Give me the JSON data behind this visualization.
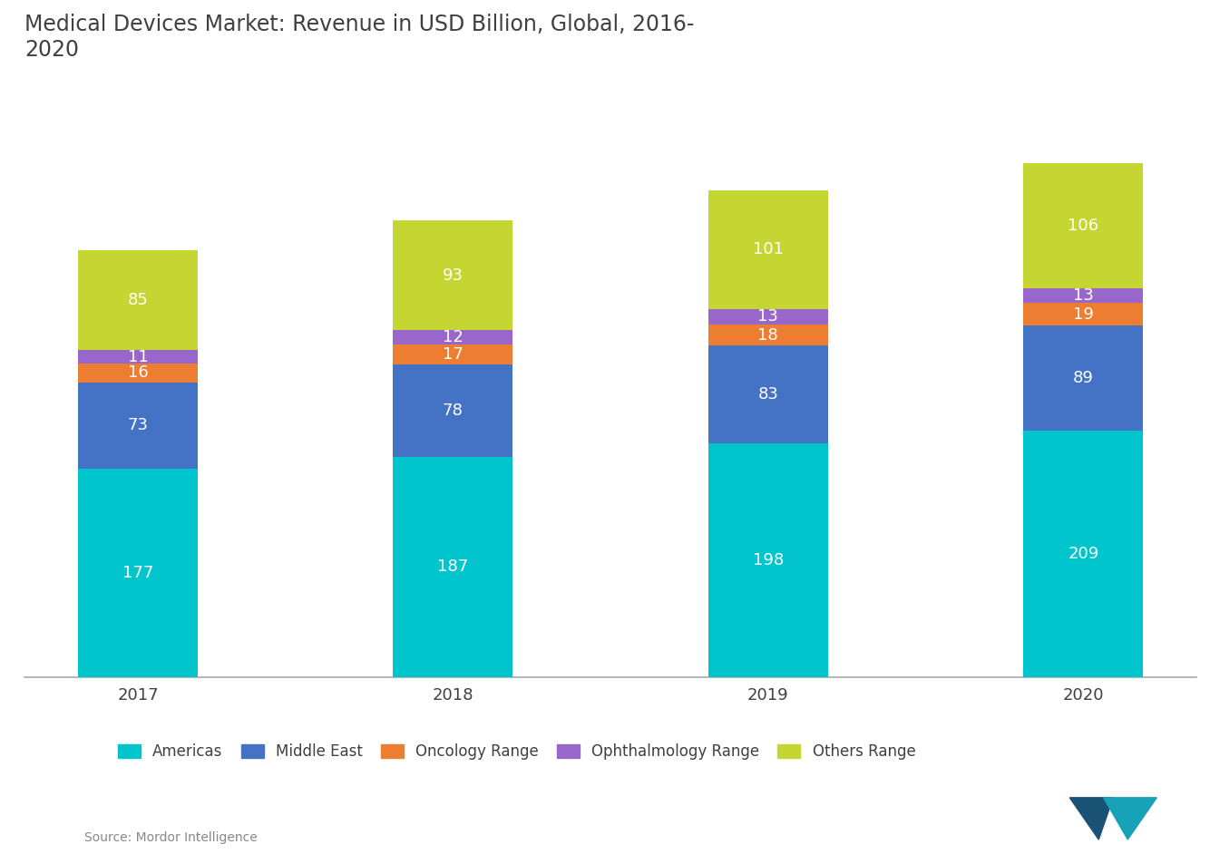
{
  "title": "Medical Devices Market: Revenue in USD Billion, Global, 2016-\n2020",
  "years": [
    "2017",
    "2018",
    "2019",
    "2020"
  ],
  "segments": {
    "Americas": [
      177,
      187,
      198,
      209
    ],
    "Middle East": [
      73,
      78,
      83,
      89
    ],
    "Oncology Range": [
      16,
      17,
      18,
      19
    ],
    "Ophthalmology Range": [
      11,
      12,
      13,
      13
    ],
    "Others Range": [
      85,
      93,
      101,
      106
    ]
  },
  "colors": {
    "Americas": "#00c5cd",
    "Middle East": "#4472c4",
    "Oncology Range": "#ed7d31",
    "Ophthalmology Range": "#9966cc",
    "Others Range": "#c5d633"
  },
  "legend_labels": [
    "Americas",
    "Middle East",
    "Oncology Range",
    "Ophthalmology Range",
    "Others Range"
  ],
  "source_text": "Source: Mordor Intelligence",
  "background_color": "#ffffff",
  "plot_area_color": "#ffffff",
  "text_color": "#404040",
  "bar_width": 0.38,
  "title_fontsize": 17,
  "label_fontsize": 13,
  "tick_fontsize": 13,
  "legend_fontsize": 12,
  "ylim": [
    0,
    500
  ]
}
